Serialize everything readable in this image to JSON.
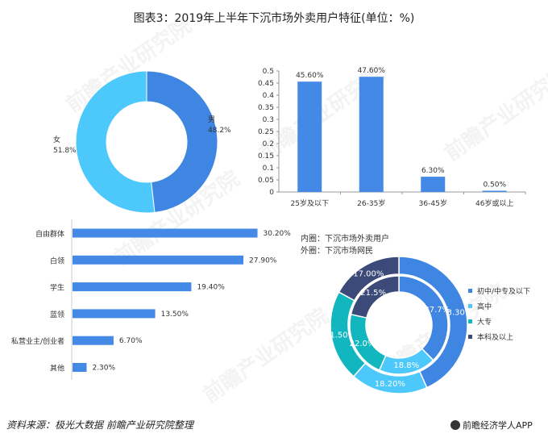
{
  "title": "图表3：2019年上半年下沉市场外卖用户特征(单位：%)",
  "source": "资料来源：极光大数据 前瞻产业研究院整理",
  "logo_text": "前瞻经济学人APP",
  "watermark": "前瞻产业研究院",
  "colors": {
    "blue": "#3f85e2",
    "light_blue": "#4cc8fb",
    "teal": "#12b6be",
    "navy": "#3b4a78",
    "bar": "#4489e6"
  },
  "chart_data": [
    {
      "type": "pie",
      "title": "gender",
      "slices": [
        {
          "label": "男",
          "value": 48.2,
          "value_label": "48.2%"
        },
        {
          "label": "女",
          "value": 51.8,
          "value_label": "51.8%"
        }
      ]
    },
    {
      "type": "bar",
      "title": "age",
      "categories": [
        "25岁及以下",
        "26-35岁",
        "36-45岁",
        "46岁或以上"
      ],
      "values": [
        0.456,
        0.476,
        0.063,
        0.005
      ],
      "value_labels": [
        "45.60%",
        "47.60%",
        "6.30%",
        "0.50%"
      ],
      "yticks": [
        "0",
        "0.05",
        "0.1",
        "0.15",
        "0.2",
        "0.25",
        "0.3",
        "0.35",
        "0.4",
        "0.45",
        "0.5"
      ],
      "ylim": [
        0,
        0.5
      ]
    },
    {
      "type": "bar",
      "orientation": "horizontal",
      "title": "occupation",
      "categories": [
        "自由群体",
        "白领",
        "学生",
        "蓝领",
        "私营业主/创业者",
        "其他"
      ],
      "values": [
        30.2,
        27.9,
        19.4,
        13.5,
        6.7,
        2.3
      ],
      "value_labels": [
        "30.20%",
        "27.90%",
        "19.40%",
        "13.50%",
        "6.70%",
        "2.30%"
      ]
    },
    {
      "type": "pie",
      "title": "education",
      "note_inner": "内圈：下沉市场外卖用户",
      "note_outer": "外圈：下沉市场网民",
      "legend": [
        "初中/中专及以下",
        "高中",
        "大专",
        "本科及以上"
      ],
      "inner": {
        "values": [
          37.7,
          18.8,
          22.0,
          21.5
        ],
        "labels": [
          "37.7%",
          "18.8%",
          "22.0%",
          "21.5%"
        ]
      },
      "outer": {
        "values": [
          43.3,
          18.2,
          21.5,
          17.0
        ],
        "labels": [
          "43.30%",
          "18.20%",
          "21.50%",
          "17.00%"
        ]
      },
      "legend_placement": "right"
    }
  ]
}
